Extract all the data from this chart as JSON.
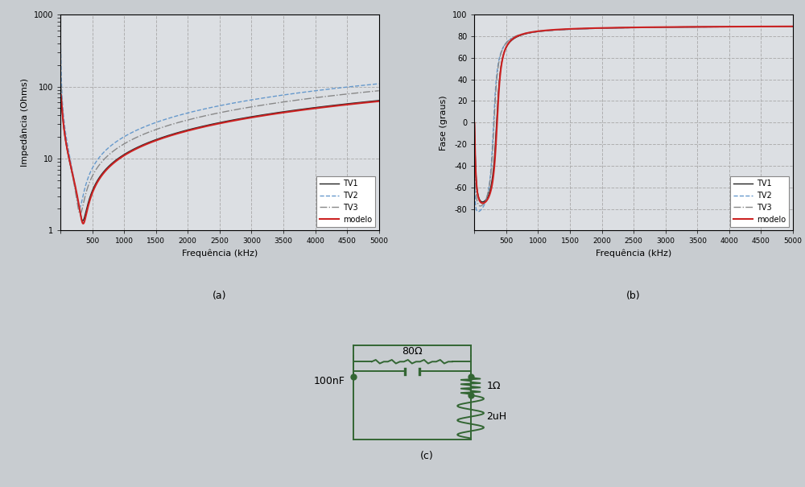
{
  "bg_color": "#c8ccd0",
  "plot_bg_color": "#dcdfe3",
  "subplot_a_label": "(a)",
  "subplot_b_label": "(b)",
  "subplot_c_label": "(c)",
  "xlabel": "Frequência (kHz)",
  "ylabel_a": "Impedância (Ohms)",
  "ylabel_b": "Fase (graus)",
  "xmax": 5000,
  "xmin": 0,
  "xticks": [
    0,
    500,
    1000,
    1500,
    2000,
    2500,
    3000,
    3500,
    4000,
    4500,
    5000
  ],
  "ylim_a_log": [
    1,
    1000
  ],
  "ylim_b": [
    -100,
    100
  ],
  "yticks_b": [
    -80,
    -60,
    -40,
    -20,
    0,
    20,
    40,
    60,
    80,
    100
  ],
  "legend_entries": [
    "TV1",
    "TV2",
    "TV3",
    "modelo"
  ],
  "tv1_color": "#222222",
  "tv2_color": "#6699cc",
  "tv3_color": "#888888",
  "modelo_color": "#cc2222",
  "circuit_color": "#336633",
  "resistor_label_1": "80Ω",
  "capacitor_label": "100nF",
  "resistor_label_2": "1Ω",
  "inductor_label": "2uH"
}
